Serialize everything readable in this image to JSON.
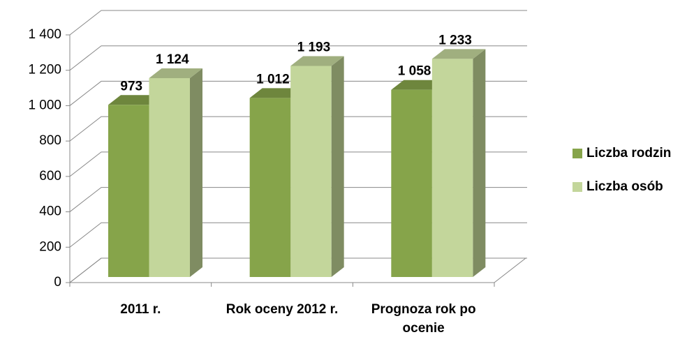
{
  "chart_data": {
    "type": "bar3d",
    "categories": [
      "2011 r.",
      "Rok oceny 2012 r.",
      "Prognoza rok po ocenie"
    ],
    "series": [
      {
        "name": "Liczba rodzin",
        "color": "#86a44a",
        "values": [
          973,
          1012,
          1058
        ],
        "value_labels": [
          "973",
          "1 012",
          "1 058"
        ]
      },
      {
        "name": "Liczba osób",
        "color": "#c3d69b",
        "values": [
          1124,
          1193,
          1233
        ],
        "value_labels": [
          "1 124",
          "1 193",
          "1 233"
        ]
      }
    ],
    "ylim": [
      0,
      1400
    ],
    "yticks": [
      0,
      200,
      400,
      600,
      800,
      {
        "value": 1000,
        "label": "1 000"
      },
      {
        "value": 1200,
        "label": "1 200"
      },
      {
        "value": 1400,
        "label": "1 400"
      }
    ],
    "grid": true,
    "legend": "right"
  }
}
